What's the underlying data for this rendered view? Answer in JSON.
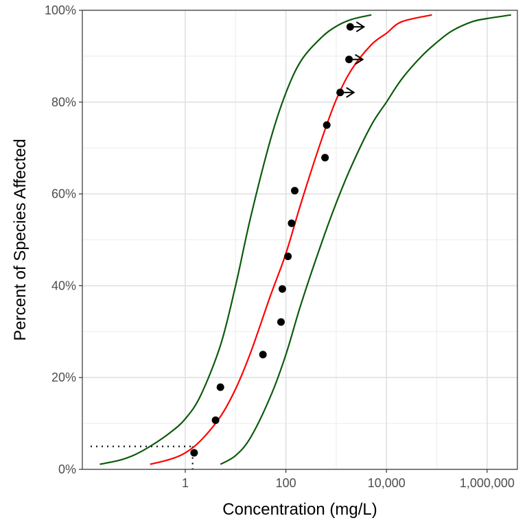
{
  "chart_data": {
    "type": "scatter",
    "title": "",
    "xlabel": "Concentration (mg/L)",
    "ylabel": "Percent of Species Affected",
    "x_scale": "log10",
    "xlim": [
      0.009,
      4000000
    ],
    "ylim": [
      0,
      1
    ],
    "x_ticks": [
      {
        "value": 1,
        "label": "1"
      },
      {
        "value": 100,
        "label": "100"
      },
      {
        "value": 10000,
        "label": "10,000"
      },
      {
        "value": 1000000,
        "label": "1,000,000"
      }
    ],
    "y_ticks": [
      {
        "value": 0,
        "label": "0%"
      },
      {
        "value": 0.2,
        "label": "20%"
      },
      {
        "value": 0.4,
        "label": "40%"
      },
      {
        "value": 0.6,
        "label": "60%"
      },
      {
        "value": 0.8,
        "label": "80%"
      },
      {
        "value": 1,
        "label": "100%"
      }
    ],
    "grid": true,
    "colors": {
      "fit": "#ff0000",
      "bounds": "#0b5a0b",
      "points": "#000000",
      "reference": "#000000"
    },
    "fitted_curve": {
      "x": [
        0.2,
        0.5,
        1,
        2,
        5,
        10,
        20,
        50,
        100,
        200,
        500,
        1000,
        2000,
        5000,
        10000,
        20000,
        80000
      ],
      "y": [
        0.011,
        0.022,
        0.036,
        0.062,
        0.115,
        0.175,
        0.255,
        0.38,
        0.47,
        0.58,
        0.715,
        0.805,
        0.87,
        0.925,
        0.95,
        0.975,
        0.99
      ]
    },
    "lower_bound_curve": {
      "x": [
        0.02,
        0.05,
        0.1,
        0.2,
        0.5,
        1,
        2,
        5,
        10,
        20,
        50,
        100,
        200,
        500,
        1000,
        2000,
        5000
      ],
      "y": [
        0.011,
        0.02,
        0.032,
        0.05,
        0.08,
        0.11,
        0.16,
        0.27,
        0.4,
        0.55,
        0.72,
        0.82,
        0.89,
        0.94,
        0.965,
        0.98,
        0.99
      ]
    },
    "upper_bound_curve": {
      "x": [
        5,
        10,
        20,
        50,
        100,
        200,
        500,
        1000,
        2000,
        5000,
        10000,
        20000,
        50000,
        100000,
        200000,
        500000,
        1000000,
        3000000
      ],
      "y": [
        0.011,
        0.03,
        0.07,
        0.16,
        0.25,
        0.36,
        0.49,
        0.58,
        0.66,
        0.75,
        0.8,
        0.85,
        0.9,
        0.93,
        0.955,
        0.975,
        0.982,
        0.99
      ]
    },
    "points": [
      {
        "x": 1.5,
        "y": 0.036,
        "censored": false
      },
      {
        "x": 4,
        "y": 0.107,
        "censored": false
      },
      {
        "x": 5,
        "y": 0.179,
        "censored": false
      },
      {
        "x": 35,
        "y": 0.25,
        "censored": false
      },
      {
        "x": 80,
        "y": 0.321,
        "censored": false
      },
      {
        "x": 85,
        "y": 0.393,
        "censored": false
      },
      {
        "x": 110,
        "y": 0.464,
        "censored": false
      },
      {
        "x": 130,
        "y": 0.536,
        "censored": false
      },
      {
        "x": 150,
        "y": 0.607,
        "censored": false
      },
      {
        "x": 600,
        "y": 0.679,
        "censored": false
      },
      {
        "x": 650,
        "y": 0.75,
        "censored": false
      },
      {
        "x": 1200,
        "y": 0.821,
        "censored": true
      },
      {
        "x": 1800,
        "y": 0.893,
        "censored": true
      },
      {
        "x": 1900,
        "y": 0.964,
        "censored": true
      }
    ],
    "reference": {
      "x": 1.4,
      "y": 0.05
    }
  }
}
